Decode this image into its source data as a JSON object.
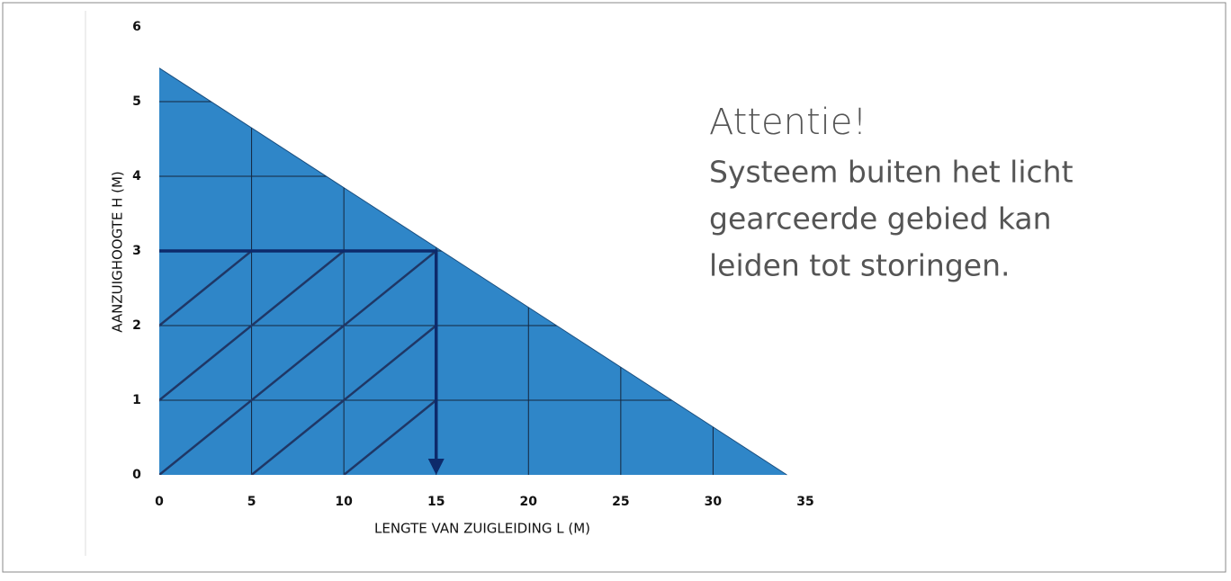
{
  "chart_data": {
    "type": "area",
    "x": [
      0,
      34
    ],
    "values": [
      5.45,
      0
    ],
    "color": "#2f86c8",
    "xlim": [
      0,
      35
    ],
    "ylim": [
      0,
      6
    ],
    "xticks": [
      0,
      5,
      10,
      15,
      20,
      25,
      30,
      35
    ],
    "yticks": [
      0,
      1,
      2,
      3,
      4,
      5,
      6
    ],
    "grid": true,
    "xlabel": "LENGTE VAN  ZUIGLEIDING L (M)",
    "ylabel": "AANZUIGHOOGTE H (M)",
    "reference_point": {
      "x": 15,
      "y": 3
    },
    "annotation": {
      "title": "Attentie!",
      "lines": [
        "Systeem buiten het licht",
        "gearceerde gebied kan",
        "leiden tot storingen."
      ]
    }
  }
}
